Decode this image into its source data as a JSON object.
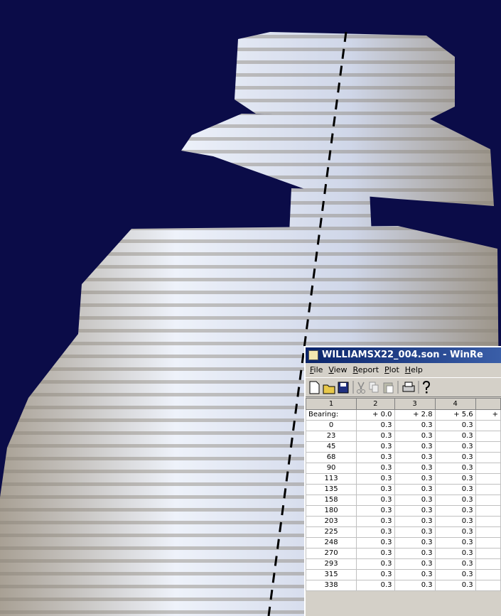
{
  "window": {
    "title": "WILLIAMSX22_004.son - WinRe",
    "menu": [
      "File",
      "View",
      "Report",
      "Plot",
      "Help"
    ]
  },
  "table": {
    "header": [
      "1",
      "2",
      "3",
      "4"
    ],
    "rows": [
      [
        "Bearing:",
        "+ 0.0",
        "+ 2.8",
        "+ 5.6",
        "+"
      ],
      [
        "0",
        "0.3",
        "0.3",
        "0.3"
      ],
      [
        "23",
        "0.3",
        "0.3",
        "0.3"
      ],
      [
        "45",
        "0.3",
        "0.3",
        "0.3"
      ],
      [
        "68",
        "0.3",
        "0.3",
        "0.3"
      ],
      [
        "90",
        "0.3",
        "0.3",
        "0.3"
      ],
      [
        "113",
        "0.3",
        "0.3",
        "0.3"
      ],
      [
        "135",
        "0.3",
        "0.3",
        "0.3"
      ],
      [
        "158",
        "0.3",
        "0.3",
        "0.3"
      ],
      [
        "180",
        "0.3",
        "0.3",
        "0.3"
      ],
      [
        "203",
        "0.3",
        "0.3",
        "0.3"
      ],
      [
        "225",
        "0.3",
        "0.3",
        "0.3"
      ],
      [
        "248",
        "0.3",
        "0.3",
        "0.3"
      ],
      [
        "270",
        "0.3",
        "0.3",
        "0.3"
      ],
      [
        "293",
        "0.3",
        "0.3",
        "0.3"
      ],
      [
        "315",
        "0.3",
        "0.3",
        "0.3"
      ],
      [
        "338",
        "0.3",
        "0.3",
        "0.3"
      ]
    ]
  }
}
